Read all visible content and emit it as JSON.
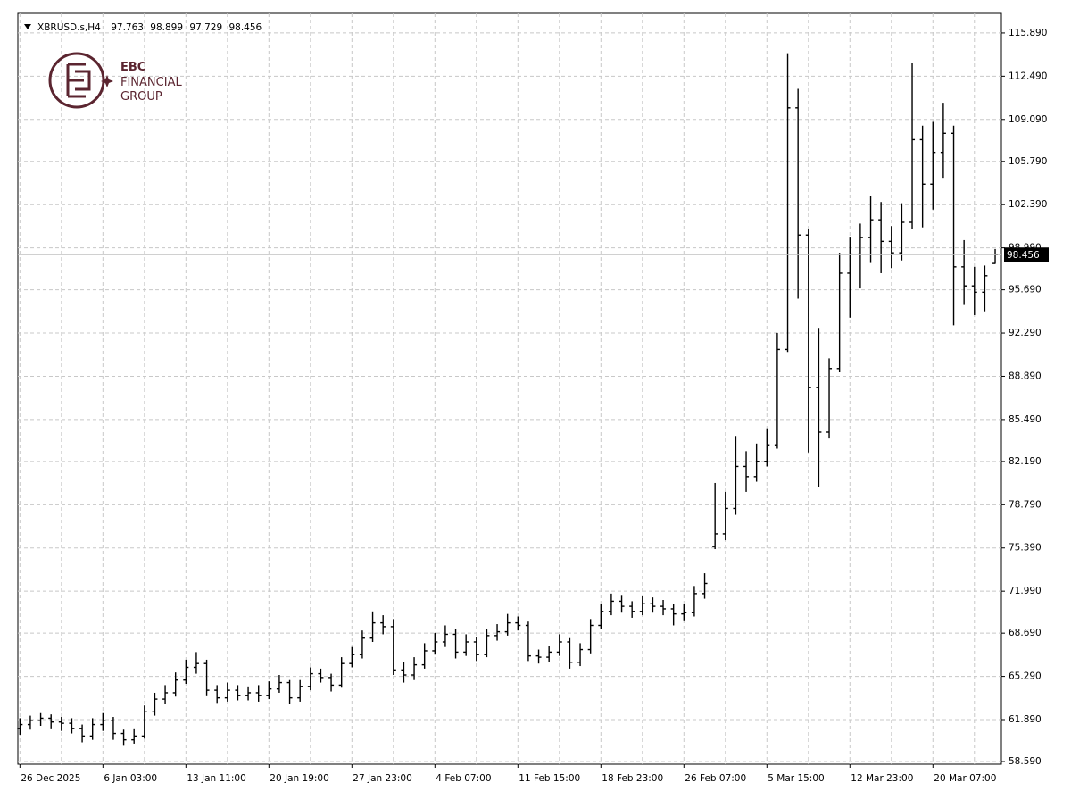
{
  "chart_data": {
    "type": "ohlc",
    "title": "XBRUSD.s,H4",
    "logo": [
      "EBC",
      "FINANCIAL",
      "GROUP"
    ],
    "color": "#000000",
    "price_line_color": "#c0c0c0",
    "grid": true,
    "ylim": [
      58.38,
      117.43
    ],
    "xlim": [
      -0.2,
      94.6
    ],
    "yticks": [
      {
        "value": 58.59,
        "label": "58.590"
      },
      {
        "value": 61.89,
        "label": "61.890"
      },
      {
        "value": 65.29,
        "label": "65.290"
      },
      {
        "value": 68.69,
        "label": "68.690"
      },
      {
        "value": 71.99,
        "label": "71.990"
      },
      {
        "value": 75.39,
        "label": "75.390"
      },
      {
        "value": 78.79,
        "label": "78.790"
      },
      {
        "value": 82.19,
        "label": "82.190"
      },
      {
        "value": 85.49,
        "label": "85.490"
      },
      {
        "value": 88.89,
        "label": "88.890"
      },
      {
        "value": 92.29,
        "label": "92.290"
      },
      {
        "value": 95.69,
        "label": "95.690"
      },
      {
        "value": 98.99,
        "label": "98.990"
      },
      {
        "value": 102.39,
        "label": "102.390"
      },
      {
        "value": 105.79,
        "label": "105.790"
      },
      {
        "value": 109.09,
        "label": "109.090"
      },
      {
        "value": 112.49,
        "label": "112.490"
      },
      {
        "value": 115.89,
        "label": "115.890"
      }
    ],
    "xticks": [
      {
        "value": 0,
        "label": "26 Dec 2025"
      },
      {
        "value": 8,
        "label": "6 Jan 03:00"
      },
      {
        "value": 16,
        "label": "13 Jan 11:00"
      },
      {
        "value": 24,
        "label": "20 Jan 19:00"
      },
      {
        "value": 32,
        "label": "27 Jan 23:00"
      },
      {
        "value": 40,
        "label": "4 Feb 07:00"
      },
      {
        "value": 48,
        "label": "11 Feb 15:00"
      },
      {
        "value": 56,
        "label": "18 Feb 23:00"
      },
      {
        "value": 64,
        "label": "26 Feb 07:00"
      },
      {
        "value": 72,
        "label": "5 Mar 15:00"
      },
      {
        "value": 80,
        "label": "12 Mar 23:00"
      },
      {
        "value": 88,
        "label": "20 Mar 07:00"
      }
    ],
    "open": [
      61.2,
      61.5,
      61.8,
      62.0,
      61.7,
      61.6,
      61.2,
      60.6,
      61.5,
      61.8,
      60.8,
      60.3,
      60.6,
      62.5,
      63.5,
      64.0,
      65.0,
      66.0,
      66.3,
      64.2,
      63.6,
      64.2,
      63.8,
      64.0,
      63.8,
      64.3,
      64.8,
      63.6,
      64.5,
      65.5,
      65.2,
      64.6,
      66.3,
      67.0,
      68.3,
      69.5,
      69.2,
      65.8,
      65.4,
      66.2,
      67.3,
      68.0,
      68.6,
      67.2,
      68.0,
      67.0,
      68.5,
      68.8,
      69.5,
      69.3,
      66.9,
      66.8,
      67.2,
      68.0,
      66.4,
      67.4,
      69.3,
      70.4,
      71.2,
      70.8,
      70.4,
      71.0,
      70.8,
      70.6,
      70.2,
      70.3,
      71.8,
      75.5,
      76.5,
      78.5,
      81.8,
      81.0,
      82.2,
      83.5,
      91.0,
      110.0,
      100.0,
      88.0,
      84.5,
      89.5,
      97.0,
      98.5,
      99.8,
      101.2,
      99.5,
      98.6,
      101.0,
      107.5,
      104.0,
      106.5,
      108.0,
      97.5,
      96.0,
      95.5,
      97.763
    ],
    "high": [
      62.0,
      62.2,
      62.4,
      62.3,
      62.1,
      62.0,
      61.5,
      62.0,
      62.4,
      62.1,
      61.1,
      61.2,
      63.0,
      64.0,
      64.6,
      65.6,
      66.6,
      67.2,
      66.6,
      64.6,
      64.8,
      64.6,
      64.5,
      64.6,
      64.9,
      65.4,
      65.0,
      65.0,
      66.0,
      65.9,
      65.5,
      66.8,
      67.6,
      68.9,
      70.4,
      70.1,
      69.8,
      66.4,
      66.8,
      67.9,
      68.7,
      69.3,
      69.0,
      68.6,
      68.4,
      69.0,
      69.4,
      70.2,
      70.0,
      69.6,
      67.4,
      67.7,
      68.6,
      68.3,
      67.9,
      69.8,
      71.0,
      71.8,
      71.7,
      71.2,
      71.6,
      71.5,
      71.3,
      71.0,
      71.0,
      72.4,
      73.4,
      80.5,
      79.8,
      84.2,
      83.0,
      83.6,
      84.8,
      92.3,
      114.3,
      111.5,
      100.5,
      92.7,
      90.3,
      98.6,
      99.8,
      100.9,
      103.1,
      102.6,
      100.7,
      102.5,
      113.5,
      108.6,
      108.9,
      110.4,
      108.6,
      99.6,
      97.5,
      97.6,
      98.899
    ],
    "low": [
      60.7,
      61.1,
      61.4,
      61.2,
      61.0,
      60.8,
      60.1,
      60.3,
      61.0,
      60.3,
      59.9,
      60.0,
      60.4,
      62.2,
      63.1,
      63.7,
      64.7,
      65.5,
      63.8,
      63.2,
      63.3,
      63.4,
      63.4,
      63.3,
      63.5,
      64.0,
      63.1,
      63.3,
      64.2,
      64.8,
      64.1,
      64.4,
      66.0,
      66.7,
      68.0,
      68.6,
      65.4,
      64.8,
      65.0,
      65.9,
      67.0,
      67.6,
      66.7,
      66.9,
      66.5,
      66.8,
      68.1,
      68.5,
      68.9,
      66.5,
      66.3,
      66.4,
      66.9,
      65.9,
      66.1,
      67.1,
      69.0,
      70.1,
      70.3,
      69.9,
      70.1,
      70.3,
      70.1,
      69.3,
      69.7,
      70.0,
      71.4,
      75.3,
      76.0,
      78.0,
      79.8,
      80.6,
      81.8,
      83.2,
      90.8,
      95.0,
      82.9,
      80.2,
      84.0,
      89.2,
      93.5,
      95.8,
      97.8,
      97.0,
      97.4,
      98.0,
      100.5,
      100.6,
      102.0,
      104.5,
      92.9,
      94.5,
      93.7,
      94.0,
      97.729
    ],
    "close": [
      61.5,
      61.8,
      62.0,
      61.7,
      61.6,
      61.2,
      60.6,
      61.5,
      61.8,
      60.8,
      60.3,
      60.6,
      62.5,
      63.5,
      64.0,
      65.0,
      66.0,
      66.3,
      64.2,
      63.6,
      64.2,
      63.8,
      64.0,
      63.8,
      64.3,
      64.8,
      63.6,
      64.5,
      65.5,
      65.2,
      64.6,
      66.3,
      67.0,
      68.3,
      69.5,
      69.2,
      65.8,
      65.4,
      66.2,
      67.3,
      68.0,
      68.6,
      67.2,
      68.0,
      67.0,
      68.5,
      68.8,
      69.5,
      69.3,
      66.9,
      66.8,
      67.2,
      68.0,
      66.4,
      67.4,
      69.3,
      70.4,
      71.2,
      70.8,
      70.4,
      71.0,
      70.8,
      70.6,
      70.2,
      70.3,
      71.8,
      72.6,
      76.5,
      78.5,
      81.8,
      81.0,
      82.2,
      83.5,
      91.0,
      110.0,
      100.0,
      88.0,
      84.5,
      89.5,
      97.0,
      98.5,
      99.8,
      101.2,
      99.5,
      98.6,
      101.0,
      107.5,
      104.0,
      106.5,
      108.0,
      97.5,
      96.0,
      95.5,
      96.8,
      98.456
    ]
  }
}
